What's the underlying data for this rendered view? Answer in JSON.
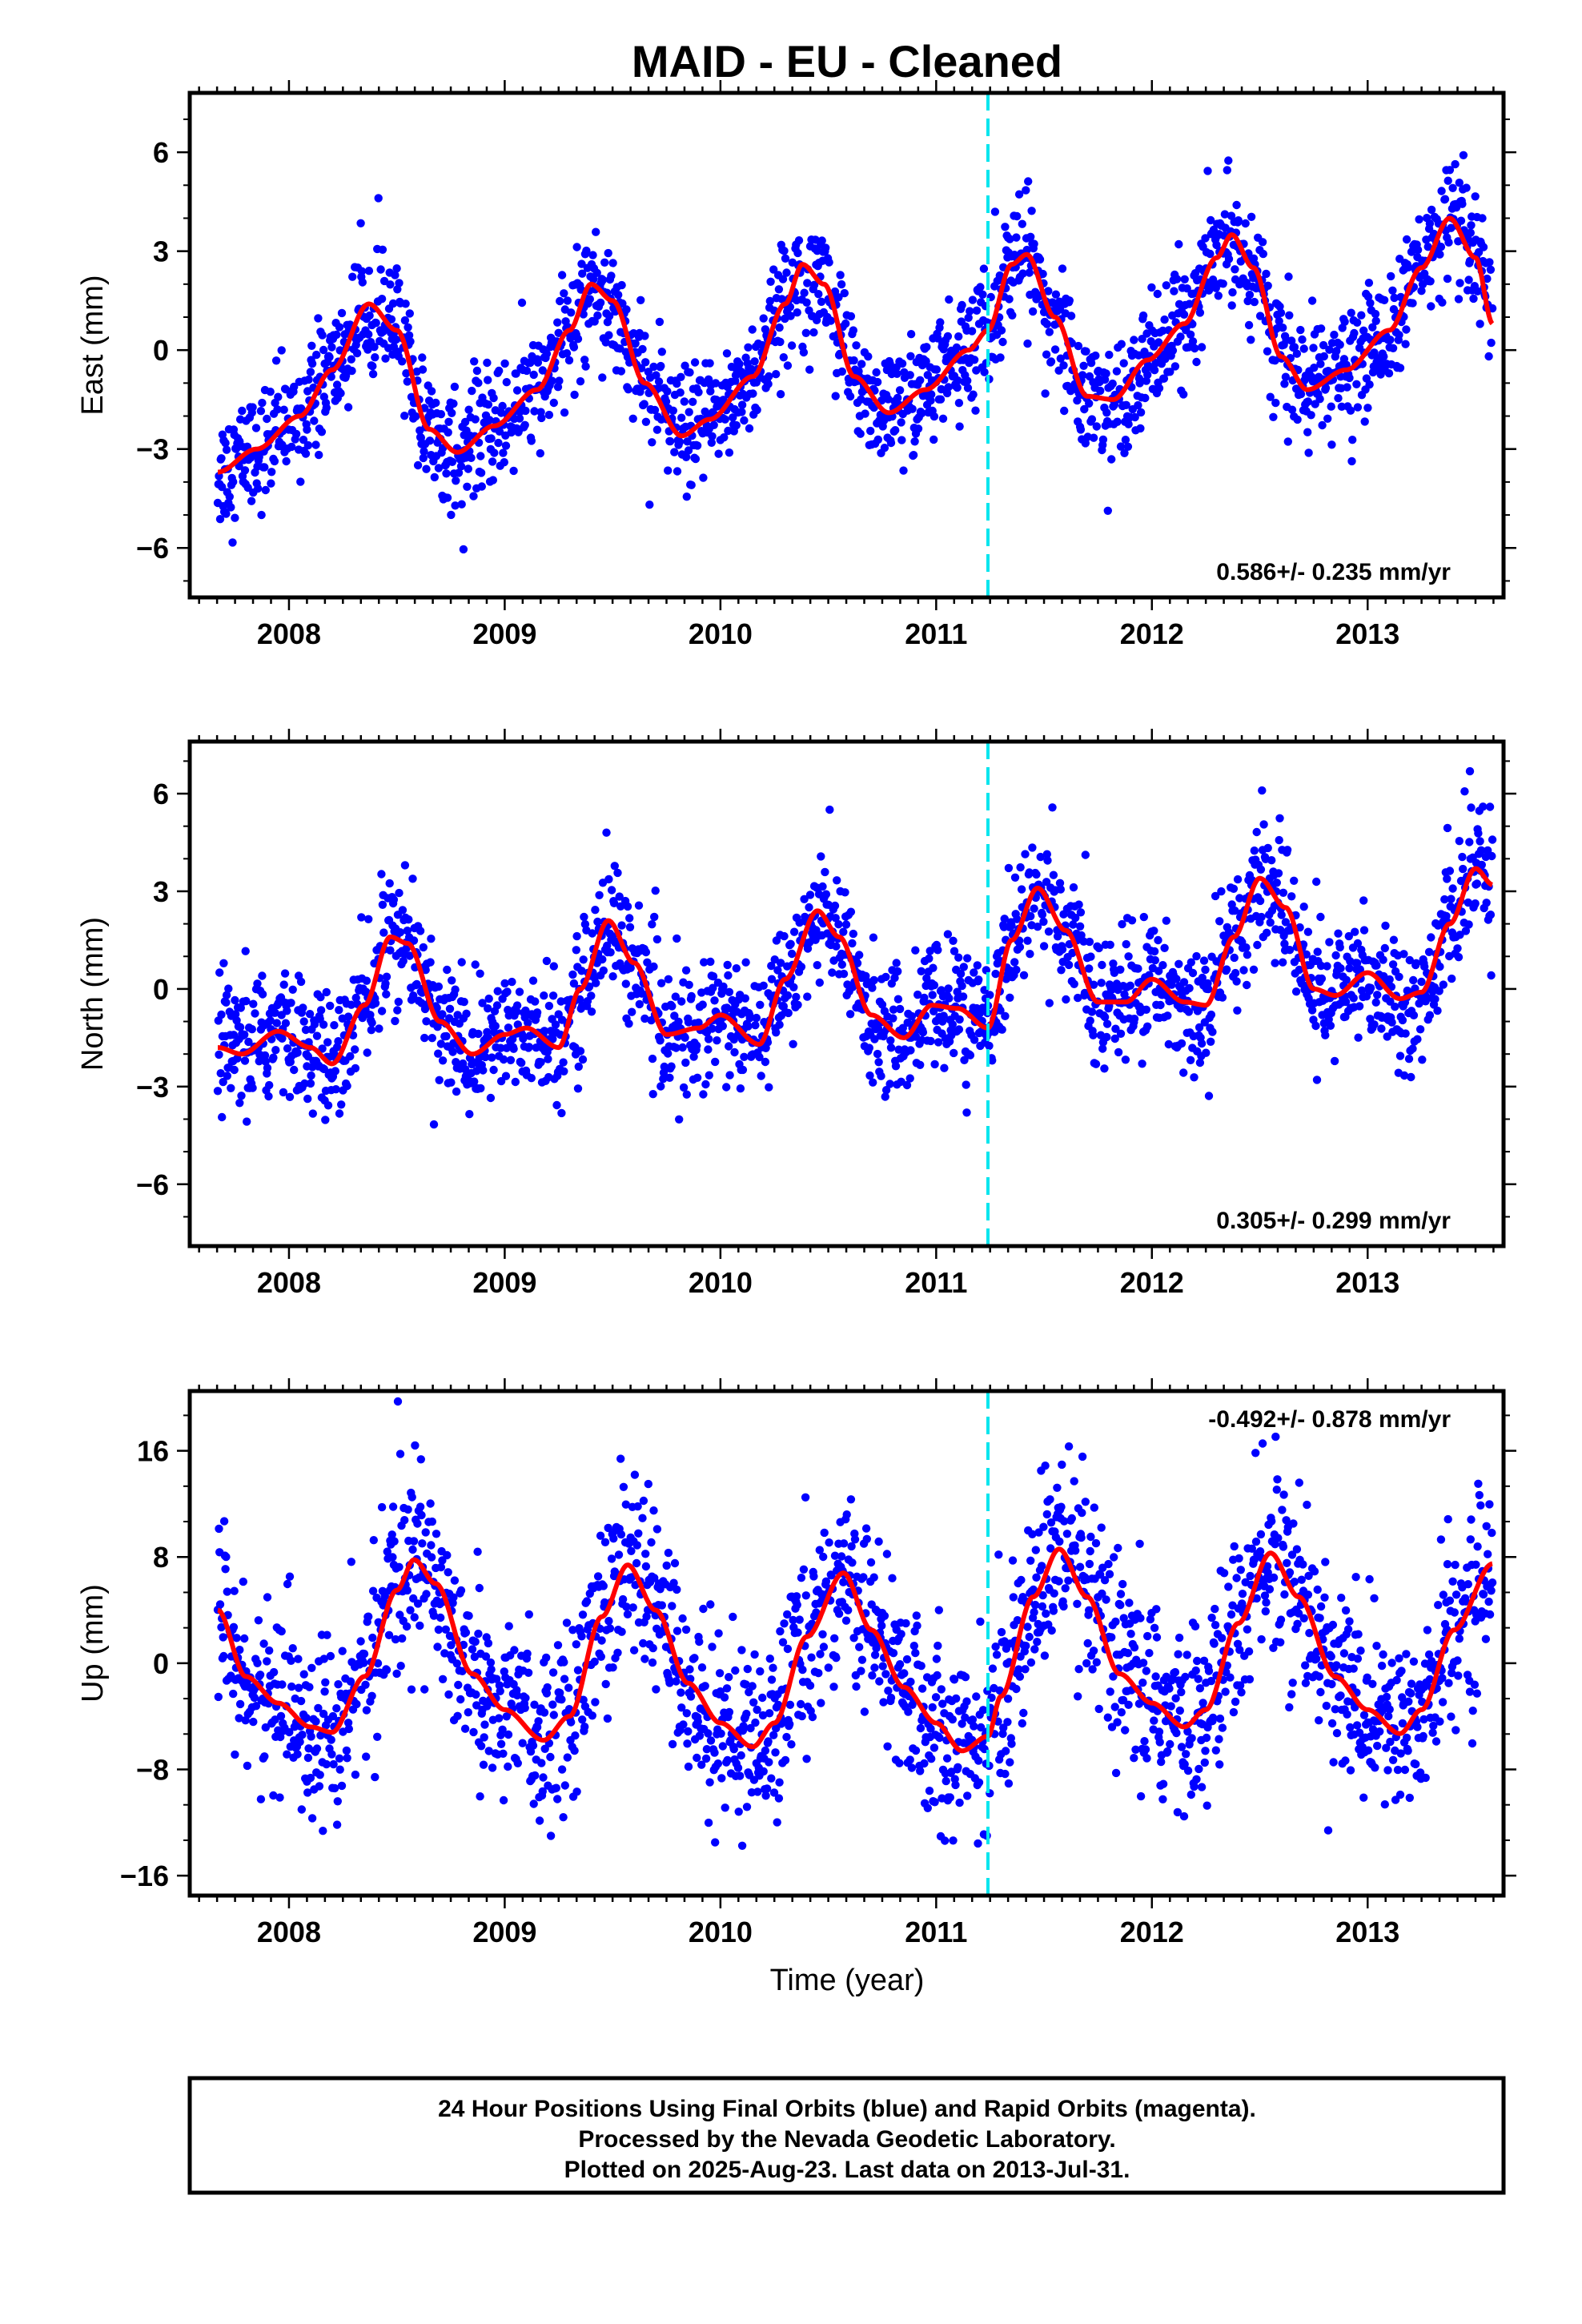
{
  "title": "MAID  - EU - Cleaned",
  "xlabel": "Time (year)",
  "footer": {
    "lines": [
      "24 Hour Positions Using Final Orbits (blue) and Rapid Orbits (magenta).",
      "Processed by the Nevada Geodetic Laboratory.",
      "Plotted on 2025-Aug-23. Last data on 2013-Jul-31."
    ]
  },
  "colors": {
    "points": "#0000ff",
    "fit": "#ff0000",
    "event_line": "#00e5ee",
    "frame": "#000000"
  },
  "chart_data": [
    {
      "type": "scatter",
      "name": "east",
      "ylabel": "East (mm)",
      "xlim": [
        2007.54,
        2013.63
      ],
      "ylim": [
        -7.5,
        7.8
      ],
      "x_ticks": [
        2008,
        2009,
        2010,
        2011,
        2012,
        2013
      ],
      "y_ticks": [
        -6,
        -3,
        0,
        3,
        6
      ],
      "y_tick_labels": [
        "−6",
        "−3",
        "0",
        "3",
        "6"
      ],
      "rate_text": "0.586+/- 0.235 mm/yr",
      "rate_position": "bottom-right",
      "event_x": 2011.24,
      "data_start": 2007.67,
      "data_end": 2013.58,
      "fit_keypoints": [
        [
          2007.67,
          -3.7
        ],
        [
          2007.85,
          -3.0
        ],
        [
          2008.05,
          -2.0
        ],
        [
          2008.2,
          -0.6
        ],
        [
          2008.37,
          1.4
        ],
        [
          2008.5,
          0.6
        ],
        [
          2008.65,
          -2.4
        ],
        [
          2008.78,
          -3.1
        ],
        [
          2008.95,
          -2.3
        ],
        [
          2009.15,
          -1.2
        ],
        [
          2009.3,
          0.6
        ],
        [
          2009.4,
          2.0
        ],
        [
          2009.5,
          1.5
        ],
        [
          2009.65,
          -1.0
        ],
        [
          2009.82,
          -2.6
        ],
        [
          2009.95,
          -2.1
        ],
        [
          2010.15,
          -0.8
        ],
        [
          2010.3,
          1.4
        ],
        [
          2010.38,
          2.6
        ],
        [
          2010.48,
          2.0
        ],
        [
          2010.62,
          -0.8
        ],
        [
          2010.78,
          -1.9
        ],
        [
          2010.95,
          -1.2
        ],
        [
          2011.15,
          0.0
        ],
        [
          2011.24,
          0.6
        ],
        [
          2011.35,
          2.6
        ],
        [
          2011.42,
          2.9
        ],
        [
          2011.55,
          1.0
        ],
        [
          2011.7,
          -1.4
        ],
        [
          2011.82,
          -1.5
        ],
        [
          2011.98,
          -0.3
        ],
        [
          2012.15,
          0.8
        ],
        [
          2012.3,
          2.8
        ],
        [
          2012.37,
          3.5
        ],
        [
          2012.47,
          2.5
        ],
        [
          2012.6,
          -0.2
        ],
        [
          2012.72,
          -1.2
        ],
        [
          2012.9,
          -0.6
        ],
        [
          2013.1,
          0.6
        ],
        [
          2013.25,
          2.5
        ],
        [
          2013.38,
          4.0
        ],
        [
          2013.5,
          2.8
        ],
        [
          2013.58,
          0.8
        ]
      ],
      "noise_sd": 0.9,
      "spread": [
        -7.2,
        7.7
      ]
    },
    {
      "type": "scatter",
      "name": "north",
      "ylabel": "North (mm)",
      "xlim": [
        2007.54,
        2013.63
      ],
      "ylim": [
        -7.9,
        7.6
      ],
      "x_ticks": [
        2008,
        2009,
        2010,
        2011,
        2012,
        2013
      ],
      "y_ticks": [
        -6,
        -3,
        0,
        3,
        6
      ],
      "y_tick_labels": [
        "−6",
        "−3",
        "0",
        "3",
        "6"
      ],
      "rate_text": "0.305+/- 0.299 mm/yr",
      "rate_position": "bottom-right",
      "event_x": 2011.24,
      "data_start": 2007.67,
      "data_end": 2013.58,
      "fit_keypoints": [
        [
          2007.67,
          -1.8
        ],
        [
          2007.78,
          -2.0
        ],
        [
          2007.95,
          -1.3
        ],
        [
          2008.1,
          -1.8
        ],
        [
          2008.2,
          -2.3
        ],
        [
          2008.35,
          -0.5
        ],
        [
          2008.47,
          1.6
        ],
        [
          2008.55,
          1.4
        ],
        [
          2008.7,
          -1.0
        ],
        [
          2008.85,
          -2.0
        ],
        [
          2009.0,
          -1.4
        ],
        [
          2009.1,
          -1.2
        ],
        [
          2009.25,
          -1.8
        ],
        [
          2009.35,
          0.0
        ],
        [
          2009.48,
          2.1
        ],
        [
          2009.6,
          0.8
        ],
        [
          2009.75,
          -1.4
        ],
        [
          2009.9,
          -1.2
        ],
        [
          2010.0,
          -0.8
        ],
        [
          2010.18,
          -1.7
        ],
        [
          2010.3,
          0.3
        ],
        [
          2010.45,
          2.4
        ],
        [
          2010.55,
          1.6
        ],
        [
          2010.7,
          -0.8
        ],
        [
          2010.85,
          -1.5
        ],
        [
          2010.98,
          -0.5
        ],
        [
          2011.1,
          -0.6
        ],
        [
          2011.24,
          -1.2
        ],
        [
          2011.35,
          1.5
        ],
        [
          2011.47,
          3.1
        ],
        [
          2011.6,
          1.8
        ],
        [
          2011.75,
          -0.4
        ],
        [
          2011.88,
          -0.4
        ],
        [
          2012.0,
          0.3
        ],
        [
          2012.15,
          -0.4
        ],
        [
          2012.25,
          -0.5
        ],
        [
          2012.38,
          1.6
        ],
        [
          2012.5,
          3.4
        ],
        [
          2012.62,
          2.5
        ],
        [
          2012.75,
          0.0
        ],
        [
          2012.85,
          -0.2
        ],
        [
          2013.0,
          0.5
        ],
        [
          2013.15,
          -0.3
        ],
        [
          2013.25,
          -0.1
        ],
        [
          2013.38,
          2.0
        ],
        [
          2013.5,
          3.7
        ],
        [
          2013.58,
          3.2
        ]
      ],
      "noise_sd": 1.0,
      "spread": [
        -7.8,
        7.4
      ]
    },
    {
      "type": "scatter",
      "name": "up",
      "ylabel": "Up (mm)",
      "xlim": [
        2007.54,
        2013.63
      ],
      "ylim": [
        -17.5,
        20.5
      ],
      "x_ticks": [
        2008,
        2009,
        2010,
        2011,
        2012,
        2013
      ],
      "y_ticks": [
        -16,
        -8,
        0,
        8,
        16
      ],
      "y_tick_labels": [
        "−16",
        "−8",
        "0",
        "8",
        "16"
      ],
      "rate_text": "-0.492+/- 0.878 mm/yr",
      "rate_position": "top-right",
      "event_x": 2011.24,
      "data_start": 2007.67,
      "data_end": 2013.58,
      "fit_keypoints": [
        [
          2007.67,
          4.0
        ],
        [
          2007.8,
          -1.0
        ],
        [
          2007.95,
          -3.0
        ],
        [
          2008.1,
          -4.8
        ],
        [
          2008.2,
          -5.2
        ],
        [
          2008.35,
          -1.0
        ],
        [
          2008.5,
          5.5
        ],
        [
          2008.58,
          7.8
        ],
        [
          2008.68,
          6.0
        ],
        [
          2008.85,
          -0.8
        ],
        [
          2009.0,
          -3.5
        ],
        [
          2009.18,
          -5.8
        ],
        [
          2009.3,
          -4.0
        ],
        [
          2009.45,
          3.5
        ],
        [
          2009.57,
          7.4
        ],
        [
          2009.7,
          4.0
        ],
        [
          2009.85,
          -1.5
        ],
        [
          2010.0,
          -4.5
        ],
        [
          2010.15,
          -6.3
        ],
        [
          2010.25,
          -4.5
        ],
        [
          2010.4,
          2.0
        ],
        [
          2010.57,
          6.8
        ],
        [
          2010.7,
          2.5
        ],
        [
          2010.85,
          -1.8
        ],
        [
          2011.0,
          -4.5
        ],
        [
          2011.12,
          -6.6
        ],
        [
          2011.24,
          -5.5
        ],
        [
          2011.3,
          -2.5
        ],
        [
          2011.45,
          5.0
        ],
        [
          2011.57,
          8.6
        ],
        [
          2011.7,
          5.0
        ],
        [
          2011.85,
          -0.8
        ],
        [
          2012.0,
          -3.0
        ],
        [
          2012.15,
          -4.8
        ],
        [
          2012.25,
          -3.5
        ],
        [
          2012.4,
          3.0
        ],
        [
          2012.55,
          8.3
        ],
        [
          2012.68,
          5.0
        ],
        [
          2012.85,
          -1.0
        ],
        [
          2013.0,
          -3.5
        ],
        [
          2013.15,
          -5.3
        ],
        [
          2013.25,
          -3.5
        ],
        [
          2013.4,
          2.5
        ],
        [
          2013.58,
          7.5
        ]
      ],
      "noise_sd": 3.6,
      "spread": [
        -16.8,
        20.0
      ]
    }
  ]
}
